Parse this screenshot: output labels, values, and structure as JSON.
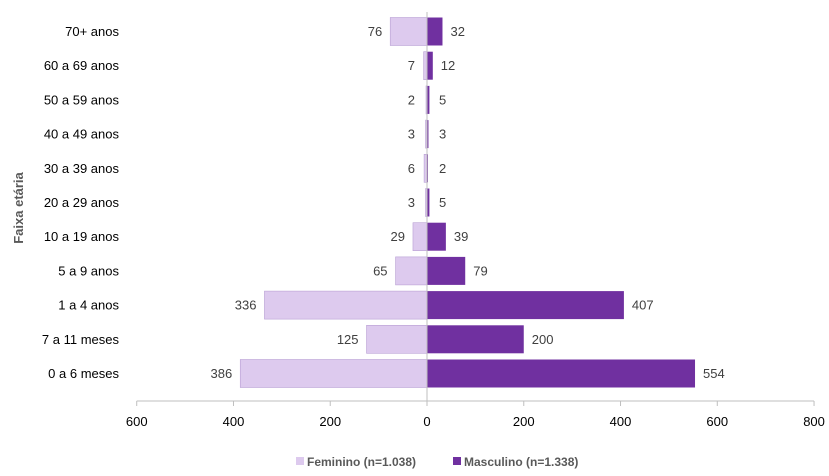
{
  "chart_data": {
    "type": "bar",
    "orientation": "horizontal",
    "layout": "population-pyramid",
    "ylabel": "Faixa etária",
    "xlabel": "",
    "categories": [
      "70+ anos",
      "60 a 69 anos",
      "50 a 59 anos",
      "40 a 49 anos",
      "30 a 39 anos",
      "20 a 29 anos",
      "10 a 19 anos",
      "5 a 9 anos",
      "1 a 4 anos",
      "7 a 11 meses",
      "0 a 6 meses"
    ],
    "series": [
      {
        "name": "Feminino (n=1.038)",
        "side": "left",
        "color": "#ddcaee",
        "values": [
          76,
          7,
          2,
          3,
          6,
          3,
          29,
          65,
          336,
          125,
          386
        ]
      },
      {
        "name": "Masculino (n=1.338)",
        "side": "right",
        "color": "#7030a0",
        "values": [
          32,
          12,
          5,
          3,
          2,
          5,
          39,
          79,
          407,
          200,
          554
        ]
      }
    ],
    "xlim": [
      -600,
      800
    ],
    "x_ticks": [
      -600,
      -400,
      -200,
      0,
      200,
      400,
      600,
      800
    ],
    "x_tick_labels": [
      "600",
      "400",
      "200",
      "0",
      "200",
      "400",
      "600",
      "800"
    ],
    "grid": false,
    "legend_position": "bottom"
  }
}
